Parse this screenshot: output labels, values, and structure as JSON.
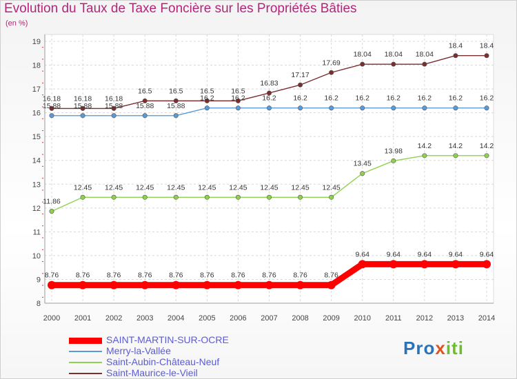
{
  "chart_data": {
    "type": "line",
    "title": "Evolution du Taux de Taxe Foncière sur les Propriétés Bâties",
    "ylabel": "(en %)",
    "xlabel": "",
    "ylim": [
      8,
      19
    ],
    "yticks": [
      "8",
      "9",
      "10",
      "11",
      "12",
      "13",
      "14",
      "15",
      "16",
      "17",
      "18",
      "19"
    ],
    "x": [
      "2000",
      "2001",
      "2002",
      "2003",
      "2004",
      "2005",
      "2006",
      "2007",
      "2008",
      "2009",
      "2010",
      "2011",
      "2012",
      "2013",
      "2014"
    ],
    "grid": true,
    "series": [
      {
        "name": "SAINT-MARTIN-SUR-OCRE",
        "color": "#ff0000",
        "values": [
          8.76,
          8.76,
          8.76,
          8.76,
          8.76,
          8.76,
          8.76,
          8.76,
          8.76,
          8.76,
          9.64,
          9.64,
          9.64,
          9.64,
          9.64
        ],
        "labels": [
          "8.76",
          "8.76",
          "8.76",
          "8.76",
          "8.76",
          "8.76",
          "8.76",
          "8.76",
          "8.76",
          "8.76",
          "9.64",
          "9.64",
          "9.64",
          "9.64",
          "9.64"
        ]
      },
      {
        "name": "Merry-la-Vallée",
        "color": "#5b9bd5",
        "values": [
          15.88,
          15.88,
          15.88,
          15.88,
          15.88,
          16.2,
          16.2,
          16.2,
          16.2,
          16.2,
          16.2,
          16.2,
          16.2,
          16.2,
          16.2
        ],
        "labels": [
          "15.88",
          "15.88",
          "15.88",
          "15.88",
          "15.88",
          "16.2",
          "16.2",
          "16.2",
          "16.2",
          "16.2",
          "16.2",
          "16.2",
          "16.2",
          "16.2",
          "16.2"
        ]
      },
      {
        "name": "Saint-Aubin-Château-Neuf",
        "color": "#8fd14f",
        "values": [
          11.86,
          12.45,
          12.45,
          12.45,
          12.45,
          12.45,
          12.45,
          12.45,
          12.45,
          12.45,
          13.45,
          13.98,
          14.2,
          14.2,
          14.2
        ],
        "labels": [
          "11.86",
          "12.45",
          "12.45",
          "12.45",
          "12.45",
          "12.45",
          "12.45",
          "12.45",
          "12.45",
          "12.45",
          "13.45",
          "13.98",
          "14.2",
          "14.2",
          "14.2"
        ]
      },
      {
        "name": "Saint-Maurice-le-Vieil",
        "color": "#7b2e2e",
        "values": [
          16.18,
          16.18,
          16.18,
          16.5,
          16.5,
          16.5,
          16.5,
          16.83,
          17.17,
          17.69,
          18.04,
          18.04,
          18.04,
          18.4,
          18.4
        ],
        "labels": [
          "16.18",
          "16.18",
          "16.18",
          "16.5",
          "16.5",
          "16.5",
          "16.5",
          "16.83",
          "17.17",
          "17.69",
          "18.04",
          "18.04",
          "18.04",
          "18.4",
          "18.4"
        ]
      }
    ]
  },
  "brand": {
    "prefix": "Pro",
    "x": "x",
    "suffix": "iti"
  },
  "colors": {
    "title": "#b3257a",
    "axis_text": "#444444",
    "grid": "#d8d8d8",
    "legend_text": "#5b5bd6"
  }
}
